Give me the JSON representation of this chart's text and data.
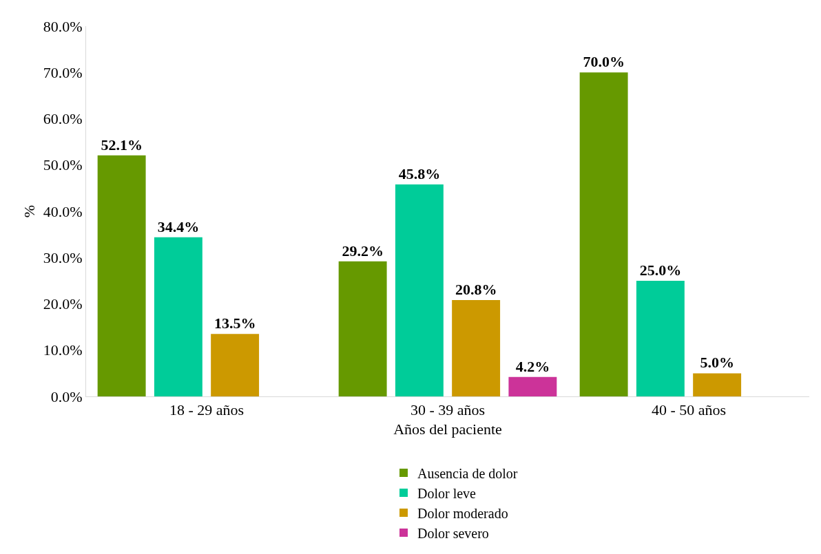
{
  "chart_data": {
    "type": "bar",
    "xlabel": "Años del paciente",
    "ylabel": "%",
    "categories": [
      "18 - 29 años",
      "30 - 39 años",
      "40 - 50 años"
    ],
    "series": [
      {
        "name": "Ausencia de dolor",
        "color": "#669900",
        "values": [
          52.1,
          29.2,
          70.0
        ],
        "value_labels": [
          "52.1%",
          "29.2%",
          "70.0%"
        ]
      },
      {
        "name": "Dolor leve",
        "color": "#00cc99",
        "values": [
          34.4,
          45.8,
          25.0
        ],
        "value_labels": [
          "34.4%",
          "45.8%",
          "25.0%"
        ]
      },
      {
        "name": "Dolor moderado",
        "color": "#cc9900",
        "values": [
          13.5,
          20.8,
          5.0
        ],
        "value_labels": [
          "13.5%",
          "20.8%",
          "5.0%"
        ]
      },
      {
        "name": "Dolor severo",
        "color": "#cc3399",
        "values": [
          null,
          4.2,
          null
        ],
        "value_labels": [
          null,
          "4.2%",
          null
        ]
      }
    ],
    "ylim": [
      0,
      80
    ],
    "yticks": [
      {
        "value": 0,
        "label": "0.0%"
      },
      {
        "value": 10,
        "label": "10.0%"
      },
      {
        "value": 20,
        "label": "20.0%"
      },
      {
        "value": 30,
        "label": "30.0%"
      },
      {
        "value": 40,
        "label": "40.0%"
      },
      {
        "value": 50,
        "label": "50.0%"
      },
      {
        "value": 60,
        "label": "60.0%"
      },
      {
        "value": 70,
        "label": "70.0%"
      },
      {
        "value": 80,
        "label": "80.0%"
      }
    ],
    "grid": false,
    "legend": "bottom"
  }
}
